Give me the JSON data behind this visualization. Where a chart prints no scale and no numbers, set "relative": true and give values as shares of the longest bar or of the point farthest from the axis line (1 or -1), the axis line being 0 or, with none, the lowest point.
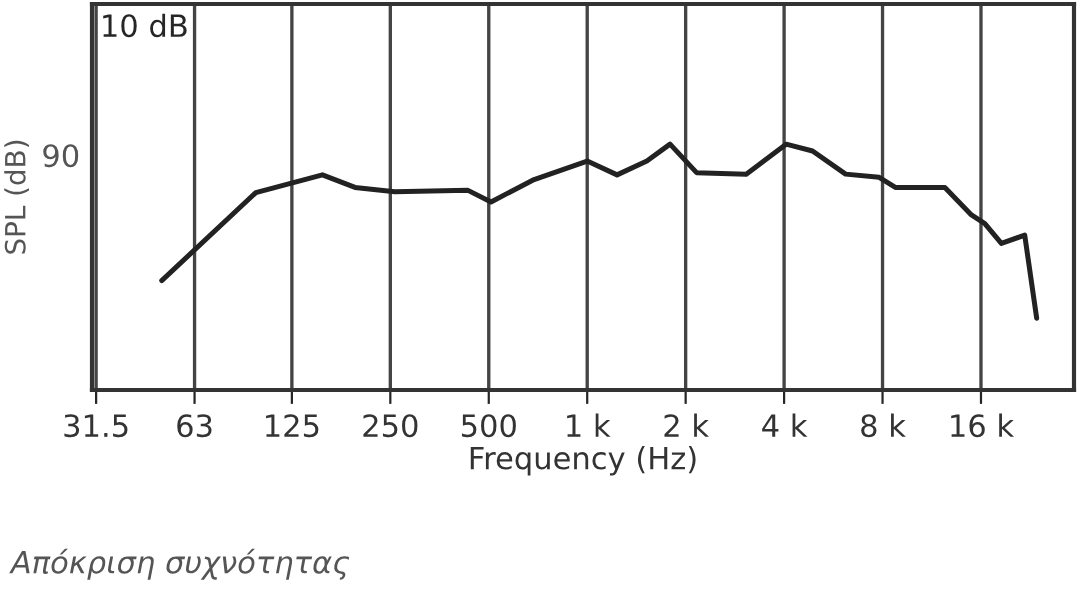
{
  "chart_data": {
    "type": "line",
    "xlabel": "Frequency (Hz)",
    "ylabel": "SPL (dB)",
    "relative": true,
    "log": "x",
    "xlim": [
      30.6,
      30800
    ],
    "xticks": [
      31.5,
      63,
      125,
      250,
      500,
      {
        "value": 1000,
        "label": "1 k"
      },
      {
        "value": 2000,
        "label": "2 k"
      },
      {
        "value": 4000,
        "label": "4 k"
      },
      {
        "value": 8000,
        "label": "8 k"
      },
      {
        "value": 16000,
        "label": "16 k"
      }
    ],
    "grid": "x",
    "marker": "none",
    "line_style": "solid",
    "series": [
      {
        "color": "#222222",
        "x": [
          50,
          97,
          155,
          195,
          258,
          432,
          508,
          688,
          1000,
          1234,
          1522,
          1792,
          2160,
          3064,
          4057,
          4888,
          6168,
          7812,
          8755,
          12410,
          14960,
          16440,
          18470,
          21770,
          23680
        ],
        "values": [
          0.445,
          0.803,
          0.875,
          0.824,
          0.806,
          0.812,
          0.765,
          0.856,
          0.931,
          0.875,
          0.931,
          1,
          0.884,
          0.878,
          1,
          0.972,
          0.878,
          0.865,
          0.824,
          0.824,
          0.712,
          0.677,
          0.596,
          0.63,
          0.292
        ]
      }
    ],
    "annotations": [
      "10 dB",
      "90",
      "Απόκριση συχνότητας"
    ]
  }
}
